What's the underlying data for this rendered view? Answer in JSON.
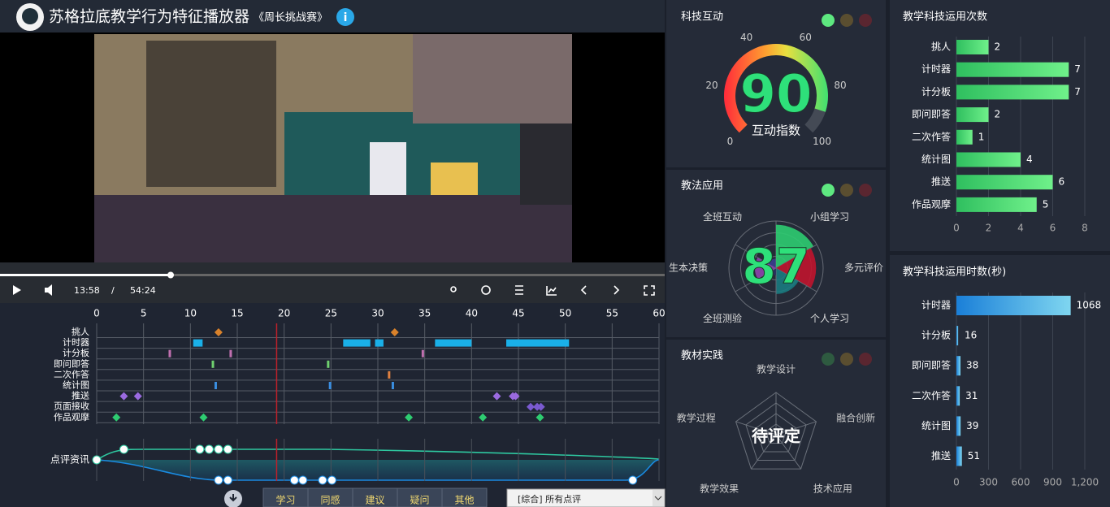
{
  "header": {
    "title": "苏格拉底教学行为特征播放器",
    "lesson": "《周长挑战赛》",
    "info": "i"
  },
  "player": {
    "current": "13:58",
    "separator": "/",
    "duration": "54:24"
  },
  "timeline": {
    "xlim": [
      0,
      60
    ],
    "xticks": [
      0,
      5,
      10,
      15,
      20,
      25,
      30,
      35,
      40,
      45,
      50,
      55,
      60
    ],
    "playhead": 19.2,
    "rows": [
      {
        "label": "挑人",
        "color": "#d9822b",
        "marker": "diamond",
        "events": [
          13.0,
          31.8
        ]
      },
      {
        "label": "计时器",
        "color": "#1ab0e8",
        "marker": "bar",
        "events": [
          [
            10.3,
            11.3
          ],
          [
            26.3,
            29.2
          ],
          [
            29.7,
            30.6
          ],
          [
            36.1,
            40.0
          ],
          [
            43.7,
            50.4
          ]
        ]
      },
      {
        "label": "计分板",
        "color": "#c070b0",
        "marker": "tick",
        "events": [
          7.8,
          14.3,
          34.8
        ]
      },
      {
        "label": "即问即答",
        "color": "#6fd06f",
        "marker": "tick",
        "events": [
          12.4,
          24.7
        ]
      },
      {
        "label": "二次作答",
        "color": "#e08040",
        "marker": "tick",
        "events": [
          31.2
        ]
      },
      {
        "label": "统计图",
        "color": "#3a8ee0",
        "marker": "tick",
        "events": [
          12.7,
          24.9,
          31.6
        ]
      },
      {
        "label": "推送",
        "color": "#9a6ae0",
        "marker": "diamond",
        "events": [
          2.9,
          4.4,
          42.7,
          44.4,
          44.7
        ]
      },
      {
        "label": "页面接收",
        "color": "#7a5ad0",
        "marker": "diamond",
        "events": [
          46.3,
          47.0,
          47.4
        ]
      },
      {
        "label": "作品观摩",
        "color": "#2ecc71",
        "marker": "diamond",
        "events": [
          2.1,
          11.4,
          33.3,
          41.2,
          47.3
        ]
      }
    ]
  },
  "comments": {
    "label": "点评资讯",
    "top": [
      0,
      2.9,
      11.0,
      12.0,
      13.0,
      14.0
    ],
    "bottom": [
      13.0,
      14.0,
      21.1,
      22.0,
      24.1,
      25.1,
      57.2
    ]
  },
  "buttons": [
    "学习",
    "同感",
    "建议",
    "疑问",
    "其他"
  ],
  "filter": "[综合] 所有点评",
  "gauge": {
    "title": "科技互动",
    "value": 90,
    "lim": [
      0,
      100
    ],
    "ticks": [
      0,
      20,
      40,
      60,
      80,
      100
    ],
    "label": "互动指数"
  },
  "polar": {
    "title": "教法应用",
    "score": 87,
    "lim": [
      0,
      100
    ],
    "categories": [
      "全班互动",
      "小组学习",
      "多元评价",
      "个人学习",
      "全班测验",
      "生本决策"
    ],
    "values": [
      20,
      92,
      85,
      55,
      15,
      45
    ],
    "colors": [
      "#3a3f8f",
      "#2ecc71",
      "#c0142e",
      "#1a7a80",
      "#2a2f60",
      "#8e44ad"
    ]
  },
  "radar": {
    "title": "教材实践",
    "status": "待评定",
    "categories": [
      "教学设计",
      "融合创新",
      "技术应用",
      "教学效果",
      "教学过程"
    ]
  },
  "usage_count": {
    "title": "教学科技运用次数",
    "categories": [
      "挑人",
      "计时器",
      "计分板",
      "即问即答",
      "二次作答",
      "统计图",
      "推送",
      "作品观摩"
    ],
    "values": [
      2,
      7,
      7,
      2,
      1,
      4,
      6,
      5
    ],
    "xlim": [
      0,
      8
    ],
    "xticks": [
      0,
      2,
      4,
      6,
      8
    ]
  },
  "usage_time": {
    "title": "教学科技运用时数(秒)",
    "categories": [
      "计时器",
      "计分板",
      "即问即答",
      "二次作答",
      "统计图",
      "推送"
    ],
    "values": [
      1068,
      16,
      38,
      31,
      39,
      51
    ],
    "value_labels": [
      "1068",
      "16",
      "38",
      "31",
      "39",
      "51"
    ],
    "xlim": [
      0,
      1200
    ],
    "xticks": [
      0,
      300,
      600,
      900,
      {
        "value": 1200,
        "label": "1,200"
      }
    ]
  }
}
